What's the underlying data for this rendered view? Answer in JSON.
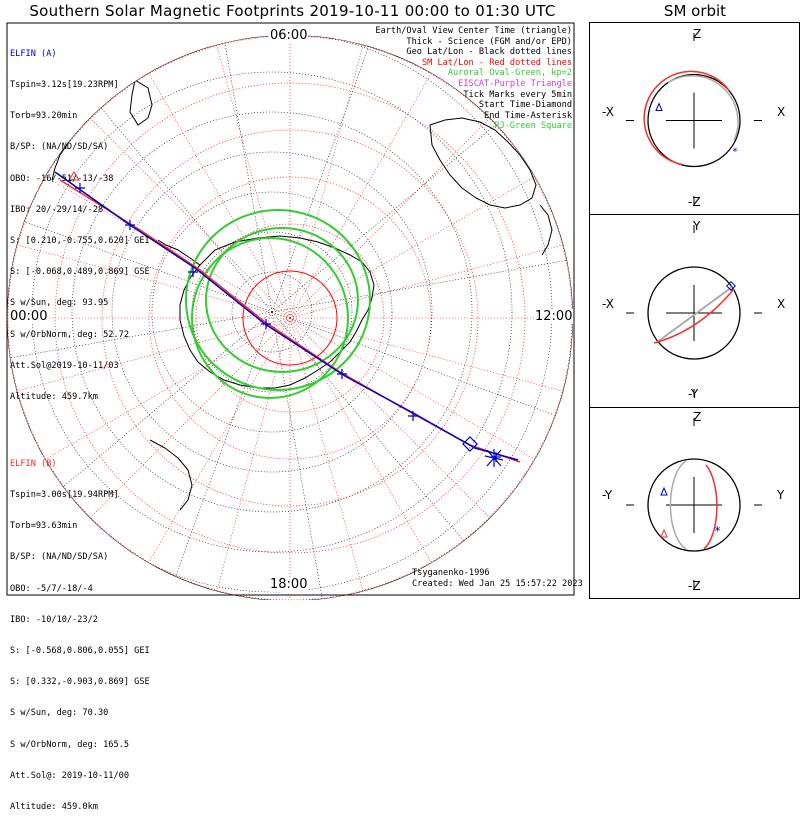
{
  "title": "Southern Solar Magnetic Footprints 2019-10-11 00:00 to 01:30 UTC",
  "orbit_title": "SM orbit",
  "clock_labels": {
    "top": "06:00",
    "left": "00:00",
    "right": "12:00",
    "bottom": "18:00"
  },
  "elfin_a": {
    "name": "ELFIN (A)",
    "color": "#0000cc",
    "lines": [
      "Tspin=3.12s[19.23RPM]",
      "Torb=93.20min",
      "B/SP: (NA/ND/SD/SA)",
      "OBO: -16/-51/-13/-38",
      "IBO: 20/-29/14/-28",
      "S: [0.210,-0.755,0.620] GEI",
      "S: [-0.068,0.489,0.869] GSE",
      "S w/Sun, deg: 93.95",
      "S w/OrbNorm, deg: 52.72",
      "Att.Sol@2019-10-11/03",
      "Altitude: 459.7km"
    ]
  },
  "elfin_b": {
    "name": "ELFIN (B)",
    "color": "#ff2a2a",
    "lines": [
      "Tspin=3.00s[19.94RPM]",
      "Torb=93.63min",
      "B/SP: (NA/ND/SD/SA)",
      "OBO: -5/7/-18/-4",
      "IBO: -10/10/-23/2",
      "S: [-0.568,0.806,0.055] GEI",
      "S: [0.332,-0.903,0.869] GSE",
      "S w/Sun, deg: 70.30",
      "S w/OrbNorm, deg: 165.5",
      "Att.Sol@: 2019-10-11/00",
      "Altitude: 459.0km"
    ]
  },
  "legend": [
    {
      "text": "Earth/Oval View Center Time (triangle)",
      "color": "#000000"
    },
    {
      "text": "Thick - Science (FGM and/or EPD)",
      "color": "#000000"
    },
    {
      "text": "Geo Lat/Lon - Black dotted lines",
      "color": "#000000"
    },
    {
      "text": "SM Lat/Lon - Red dotted lines",
      "color": "#ff0000"
    },
    {
      "text": "Auroral Oval-Green, kp=2",
      "color": "#33cc33"
    },
    {
      "text": "EISCAT-Purple Triangle",
      "color": "#cc44cc"
    },
    {
      "text": "Tick Marks every 5min",
      "color": "#000000"
    },
    {
      "text": "Start Time-Diamond",
      "color": "#000000"
    },
    {
      "text": "End Time-Asterisk",
      "color": "#000000"
    },
    {
      "text": "PJ-Green Square",
      "color": "#33cc33"
    }
  ],
  "footer": {
    "model": "Tsyganenko-1996",
    "created": "Created: Wed Jan 25 15:57:22 2023"
  },
  "colors": {
    "sm_grid": "#ff0000",
    "geo_grid": "#000000",
    "auroral_oval": "#33cc33",
    "track_a": "#0000cc",
    "track_b": "#ff2a2a",
    "orbit_a": "#0000cc",
    "orbit_b": "#ff2a2a",
    "orbit_gray": "#aaaaaa"
  },
  "orbit_panels": [
    {
      "up": "Z",
      "down": "-Z",
      "left": "-X",
      "right": "X"
    },
    {
      "up": "Y",
      "down": "-Y",
      "left": "-X",
      "right": "X"
    },
    {
      "up": "Z",
      "down": "-Z",
      "left": "-Y",
      "right": "Y"
    }
  ],
  "chart_data": {
    "type": "polar-map",
    "title": "Southern Solar Magnetic Footprints 2019-10-11 00:00 to 01:30 UTC",
    "time_range": [
      "2019-10-11 00:00",
      "2019-10-11 01:30"
    ],
    "mlt_labels": [
      "06:00",
      "12:00",
      "18:00",
      "00:00"
    ],
    "tick_interval_min": 5,
    "kp": 2,
    "series": [
      {
        "name": "ELFIN (A)"
      },
      {
        "name": "ELFIN (B)"
      }
    ]
  }
}
